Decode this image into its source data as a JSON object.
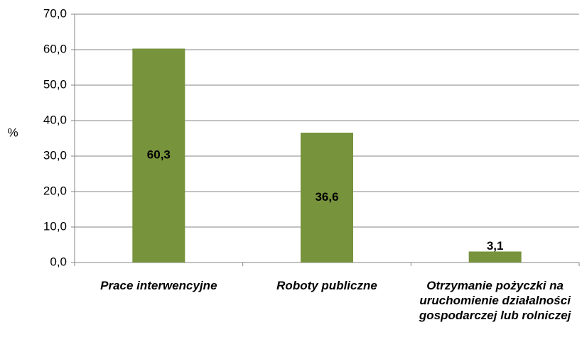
{
  "chart_data": {
    "type": "bar",
    "y_label": "%",
    "categories": [
      "Prace interwencyjne",
      "Roboty publiczne",
      "Otrzymanie pożyczki na uruchomienie działalności gospodarczej lub rolniczej"
    ],
    "values": [
      60.3,
      36.6,
      3.1
    ],
    "value_labels": [
      "60,3",
      "36,6",
      "3,1"
    ],
    "color": "#77933c",
    "ylim": [
      0,
      70
    ],
    "yticks": [
      {
        "value": 0,
        "label": "0,0"
      },
      {
        "value": 10,
        "label": "10,0"
      },
      {
        "value": 20,
        "label": "20,0"
      },
      {
        "value": 30,
        "label": "30,0"
      },
      {
        "value": 40,
        "label": "40,0"
      },
      {
        "value": 50,
        "label": "50,0"
      },
      {
        "value": 60,
        "label": "60,0"
      },
      {
        "value": 70,
        "label": "70,0"
      }
    ],
    "grid": true
  }
}
